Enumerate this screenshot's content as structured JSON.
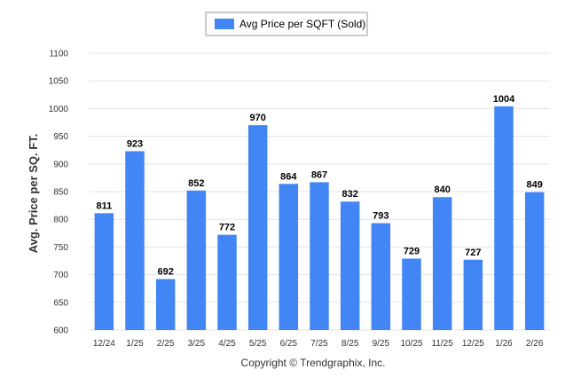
{
  "chart_data": {
    "type": "bar",
    "categories": [
      "12/24",
      "1/25",
      "2/25",
      "3/25",
      "4/25",
      "5/25",
      "6/25",
      "7/25",
      "8/25",
      "9/25",
      "10/25",
      "11/25",
      "12/25",
      "1/26",
      "2/26"
    ],
    "series": [
      {
        "name": "Avg Price per SQFT (Sold)",
        "values": [
          811,
          923,
          692,
          852,
          772,
          970,
          864,
          867,
          832,
          793,
          729,
          840,
          727,
          1004,
          849
        ],
        "color": "#4285f4"
      }
    ],
    "ylabel": "Avg. Price per SQ. FT.",
    "ylim": [
      600,
      1100
    ],
    "yticks": [
      600,
      650,
      700,
      750,
      800,
      850,
      900,
      950,
      1000,
      1050,
      1100
    ],
    "grid": true,
    "legend": "top-center",
    "data_labels": true
  },
  "footer": {
    "copyright": "Copyright © Trendgraphix, Inc."
  }
}
